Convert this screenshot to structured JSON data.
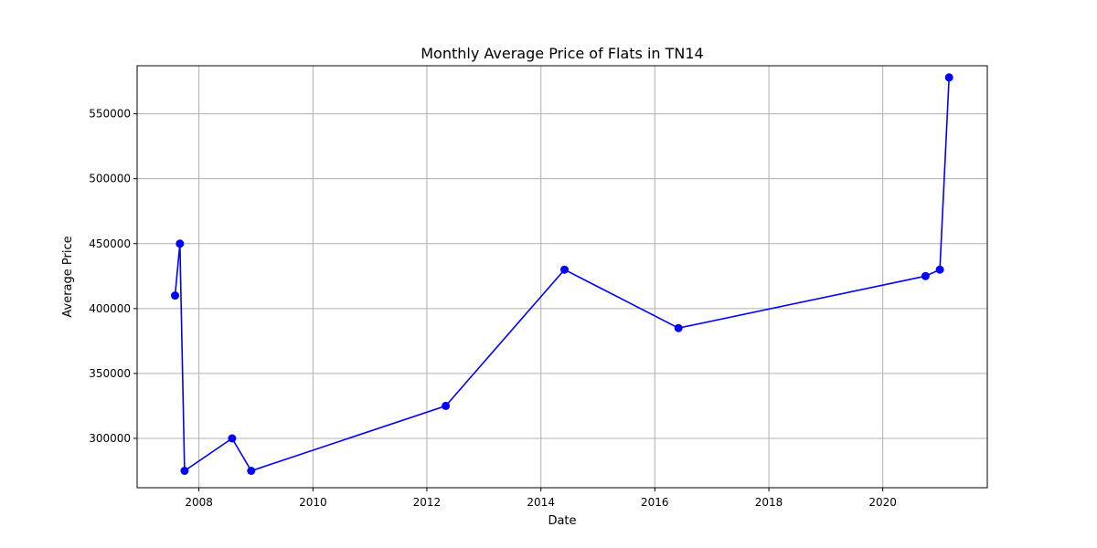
{
  "chart_data": {
    "type": "line",
    "title": "Monthly Average Price of Flats in TN14",
    "xlabel": "Date",
    "ylabel": "Average Price",
    "x_axis_kind": "date",
    "xlim": [
      "2006-12-01",
      "2021-11-01"
    ],
    "ylim": [
      262000,
      587000
    ],
    "x_ticks": [
      {
        "value": "2008-01-01",
        "label": "2008"
      },
      {
        "value": "2010-01-01",
        "label": "2010"
      },
      {
        "value": "2012-01-01",
        "label": "2012"
      },
      {
        "value": "2014-01-01",
        "label": "2014"
      },
      {
        "value": "2016-01-01",
        "label": "2016"
      },
      {
        "value": "2018-01-01",
        "label": "2018"
      },
      {
        "value": "2020-01-01",
        "label": "2020"
      }
    ],
    "y_ticks": [
      {
        "value": 300000,
        "label": "300000"
      },
      {
        "value": 350000,
        "label": "350000"
      },
      {
        "value": 400000,
        "label": "400000"
      },
      {
        "value": 450000,
        "label": "450000"
      },
      {
        "value": 500000,
        "label": "500000"
      },
      {
        "value": 550000,
        "label": "550000"
      }
    ],
    "grid": true,
    "series": [
      {
        "color": "#0000ff",
        "marker": "circle",
        "points": [
          {
            "x": "2007-08",
            "y": 410000
          },
          {
            "x": "2007-09",
            "y": 450000
          },
          {
            "x": "2007-10",
            "y": 275000
          },
          {
            "x": "2008-08",
            "y": 300000
          },
          {
            "x": "2008-12",
            "y": 275000
          },
          {
            "x": "2012-05",
            "y": 325000
          },
          {
            "x": "2014-06",
            "y": 430000
          },
          {
            "x": "2016-06",
            "y": 385000
          },
          {
            "x": "2020-10",
            "y": 425000
          },
          {
            "x": "2021-01",
            "y": 430000
          },
          {
            "x": "2021-03",
            "y": 578000
          }
        ]
      }
    ]
  }
}
